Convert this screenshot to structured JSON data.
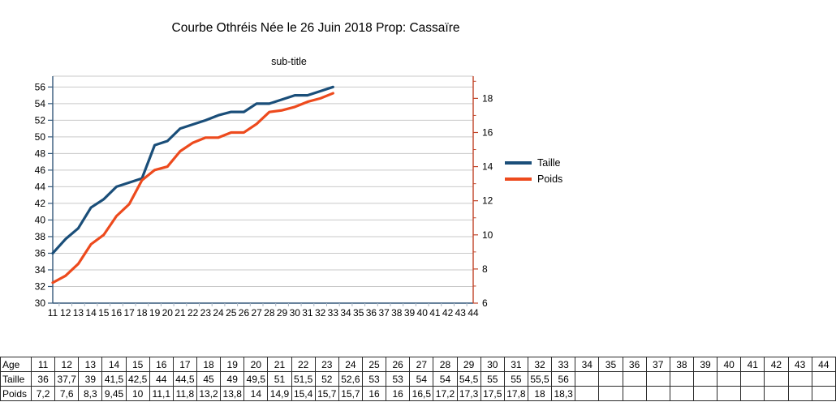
{
  "chart_data": {
    "type": "line",
    "title": "Courbe Othréis Née le 26 Juin 2018 Prop: Cassaïre",
    "subtitle": "sub-title",
    "x_label": "Age",
    "x": [
      11,
      12,
      13,
      14,
      15,
      16,
      17,
      18,
      19,
      20,
      21,
      22,
      23,
      24,
      25,
      26,
      27,
      28,
      29,
      30,
      31,
      32,
      33,
      34,
      35,
      36,
      37,
      38,
      39,
      40,
      41,
      42,
      43,
      44
    ],
    "series": [
      {
        "name": "Taille",
        "axis": "left",
        "color": "#1A4E79",
        "values": [
          36,
          37.7,
          39,
          41.5,
          42.5,
          44,
          44.5,
          45,
          49,
          49.5,
          51,
          51.5,
          52,
          52.6,
          53,
          53,
          54,
          54,
          54.5,
          55,
          55,
          55.5,
          56
        ]
      },
      {
        "name": "Poids",
        "axis": "right",
        "color": "#ED4A1D",
        "values": [
          7.2,
          7.6,
          8.3,
          9.45,
          10,
          11.1,
          11.8,
          13.2,
          13.8,
          14,
          14.9,
          15.4,
          15.7,
          15.7,
          16,
          16,
          16.5,
          17.2,
          17.3,
          17.5,
          17.8,
          18,
          18.3
        ]
      }
    ],
    "left_axis": {
      "min": 30,
      "max": 57.3,
      "ticks": [
        30,
        32,
        34,
        36,
        38,
        40,
        42,
        44,
        46,
        48,
        50,
        52,
        54,
        56
      ]
    },
    "right_axis": {
      "min": 6,
      "max": 19.3,
      "ticks": [
        6,
        8,
        10,
        12,
        14,
        16,
        18
      ],
      "minor_ticks": [
        7,
        9,
        11,
        13,
        15,
        17,
        19
      ]
    },
    "grid": "horizontal-major",
    "legend_position": "right-middle"
  },
  "colors": {
    "grid": "#C9C9C9",
    "axis_left_bottom": "#35597B",
    "axis_right": "#C04327",
    "x_tick": "#A9B4C2",
    "table_border": "#2B2B2B"
  },
  "table": {
    "rows": [
      {
        "label": "Age",
        "cells": [
          "11",
          "12",
          "13",
          "14",
          "15",
          "16",
          "17",
          "18",
          "19",
          "20",
          "21",
          "22",
          "23",
          "24",
          "25",
          "26",
          "27",
          "28",
          "29",
          "30",
          "31",
          "32",
          "33",
          "34",
          "35",
          "36",
          "37",
          "38",
          "39",
          "40",
          "41",
          "42",
          "43",
          "44"
        ]
      },
      {
        "label": "Taille",
        "cells": [
          "36",
          "37,7",
          "39",
          "41,5",
          "42,5",
          "44",
          "44,5",
          "45",
          "49",
          "49,5",
          "51",
          "51,5",
          "52",
          "52,6",
          "53",
          "53",
          "54",
          "54",
          "54,5",
          "55",
          "55",
          "55,5",
          "56",
          "",
          "",
          "",
          "",
          "",
          "",
          "",
          "",
          "",
          "",
          ""
        ]
      },
      {
        "label": "Poids",
        "cells": [
          "7,2",
          "7,6",
          "8,3",
          "9,45",
          "10",
          "11,1",
          "11,8",
          "13,2",
          "13,8",
          "14",
          "14,9",
          "15,4",
          "15,7",
          "15,7",
          "16",
          "16",
          "16,5",
          "17,2",
          "17,3",
          "17,5",
          "17,8",
          "18",
          "18,3",
          "",
          "",
          "",
          "",
          "",
          "",
          "",
          "",
          "",
          "",
          ""
        ]
      }
    ]
  }
}
